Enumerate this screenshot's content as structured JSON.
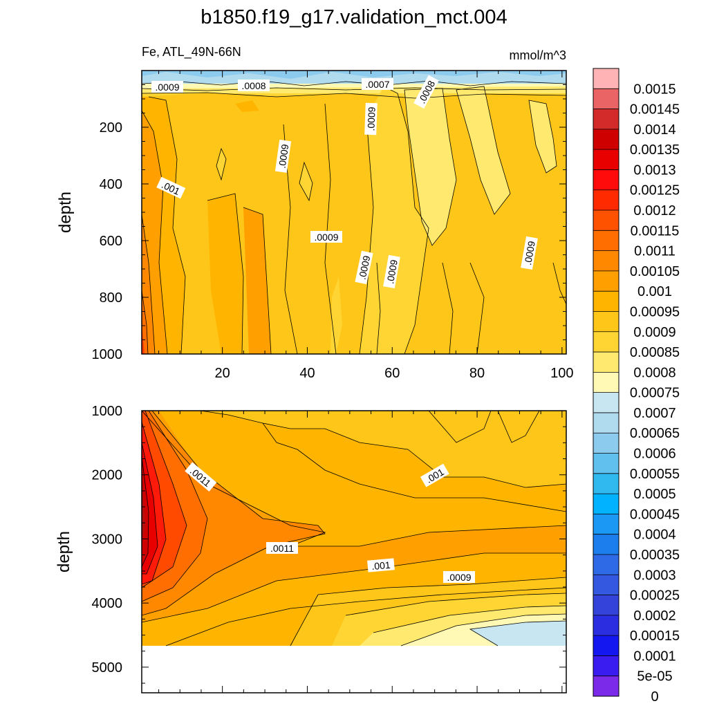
{
  "title": "b1850.f19_g17.validation_mct.004",
  "variable_label": "Fe, ATL_49N-66N",
  "units_label": "mmol/m^3",
  "chart_data": [
    {
      "type": "heatmap",
      "panel": "upper",
      "ylabel": "depth",
      "xlim": [
        1,
        101
      ],
      "ylim": [
        1000,
        0
      ],
      "x_ticks": [
        20,
        40,
        60,
        80,
        100
      ],
      "y_ticks": [
        200,
        400,
        600,
        800,
        1000
      ],
      "contour_labels": [
        ".0009",
        ".0008",
        ".0007",
        ".0008",
        ".0009",
        ".0009",
        ".001",
        ".0009",
        ".0009",
        ".0009",
        ".0009"
      ],
      "grid": false
    },
    {
      "type": "heatmap",
      "panel": "lower",
      "ylabel": "depth",
      "xlim": [
        1,
        101
      ],
      "ylim": [
        5400,
        1000
      ],
      "y_ticks": [
        1000,
        2000,
        3000,
        4000,
        5000
      ],
      "contour_labels": [
        ".0011",
        ".001",
        ".0011",
        ".001",
        ".0009"
      ],
      "missing_below_depth": 4600,
      "grid": false
    }
  ],
  "colorbar": {
    "levels": [
      "0.0015",
      "0.00145",
      "0.0014",
      "0.00135",
      "0.0013",
      "0.00125",
      "0.0012",
      "0.00115",
      "0.0011",
      "0.00105",
      "0.001",
      "0.00095",
      "0.0009",
      "0.00085",
      "0.0008",
      "0.00075",
      "0.0007",
      "0.00065",
      "0.0006",
      "0.00055",
      "0.0005",
      "0.00045",
      "0.0004",
      "0.00035",
      "0.0003",
      "0.00025",
      "0.0002",
      "0.00015",
      "0.0001",
      "5e-05",
      "0"
    ],
    "colors": [
      "#ffb3b5",
      "#ea6466",
      "#d32a2a",
      "#cf0000",
      "#e80000",
      "#ff0b0b",
      "#ff2a00",
      "#ff5200",
      "#ff6e00",
      "#ff8800",
      "#ffa000",
      "#ffb500",
      "#ffc61a",
      "#ffd533",
      "#ffea6f",
      "#fff9b5",
      "#c7e6f2",
      "#b0daee",
      "#8ccbee",
      "#62c0ef",
      "#2fb9ef",
      "#00b2ff",
      "#1a98f4",
      "#1c7ded",
      "#2e6ae6",
      "#3458e0",
      "#3444db",
      "#2a2ee0",
      "#1417f0",
      "#3a1cf0",
      "#7a2ae8"
    ]
  }
}
